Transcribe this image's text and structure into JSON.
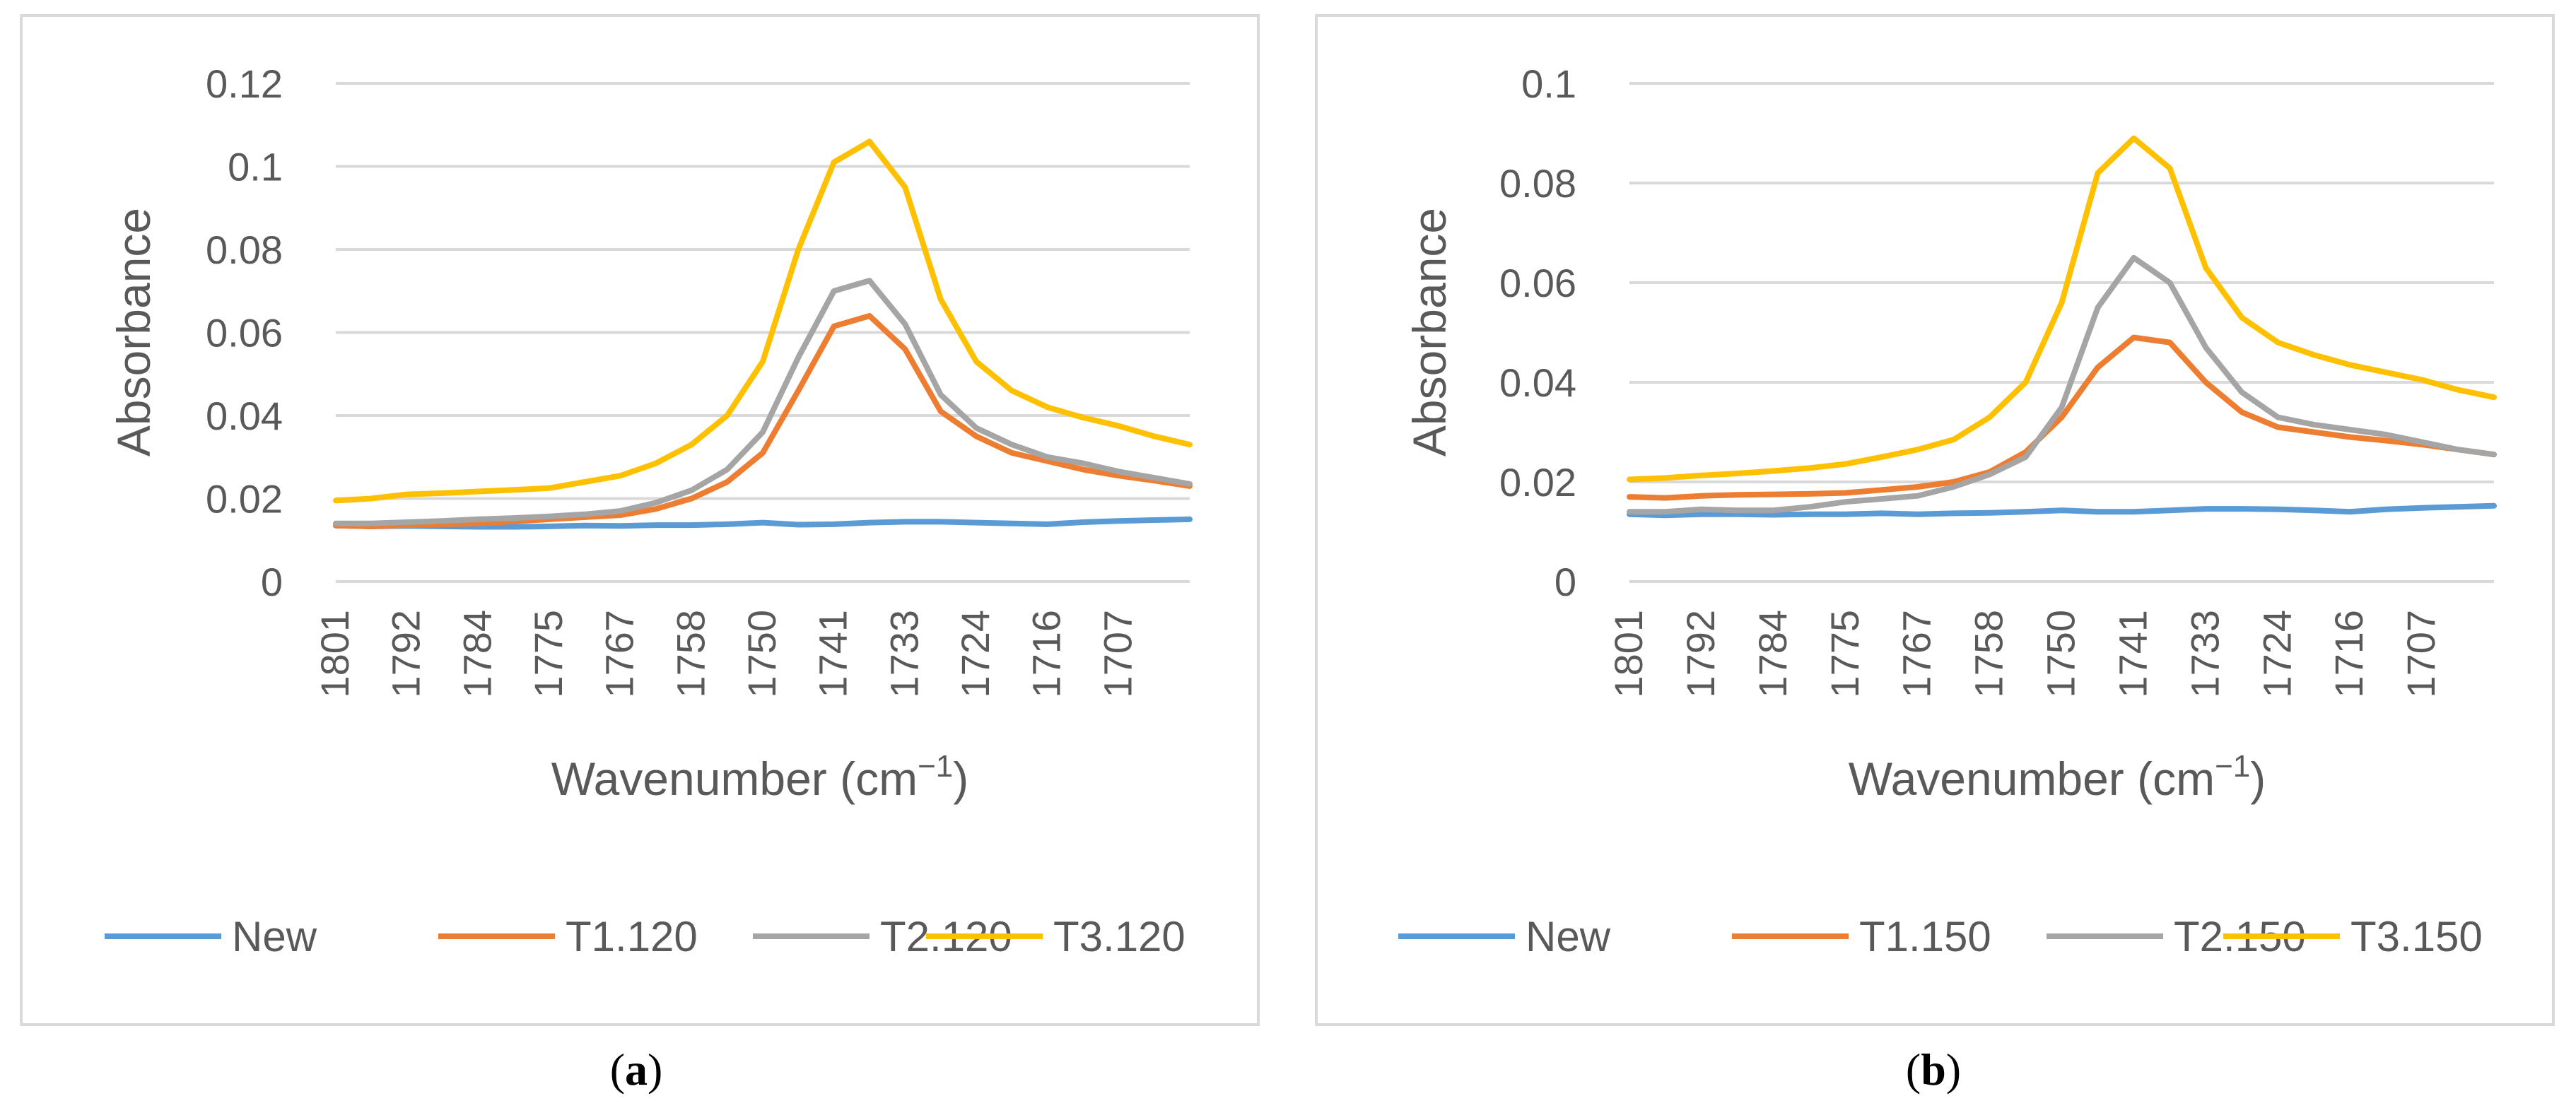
{
  "colors": {
    "new": "#5B9BD5",
    "t1": "#ED7D31",
    "t2": "#A5A5A5",
    "t3": "#FFC000",
    "grid": "#D9D9D9",
    "frame": "#D9D9D9",
    "text": "#595959"
  },
  "chart_data": [
    {
      "type": "line",
      "panel": "a",
      "caption_open": "(",
      "caption_letter": "a",
      "caption_close": ")",
      "xlabel": "Wavenumber (cm",
      "xlabel_sup": "−1",
      "xlabel_close": ")",
      "ylabel": "Absorbance",
      "ylim": [
        0,
        0.12
      ],
      "yticks": [
        "0",
        "0.02",
        "0.04",
        "0.06",
        "0.08",
        "0.1",
        "0.12"
      ],
      "x_categories": [
        "1801",
        "1796.5",
        "1792",
        "1788",
        "1784",
        "1779.5",
        "1775",
        "1771",
        "1767",
        "1762.5",
        "1758",
        "1754",
        "1750",
        "1745.5",
        "1741",
        "1737",
        "1733",
        "1728.5",
        "1724",
        "1720",
        "1716",
        "1711.5",
        "1707",
        "1703",
        "1699"
      ],
      "x_tick_labels": [
        "1801",
        "1792",
        "1784",
        "1775",
        "1767",
        "1758",
        "1750",
        "1741",
        "1733",
        "1724",
        "1716",
        "1707"
      ],
      "legend_position": "bottom",
      "series": [
        {
          "name": "New",
          "color_key": "new",
          "values": [
            0.0135,
            0.0133,
            0.0134,
            0.0133,
            0.0132,
            0.0132,
            0.0133,
            0.0135,
            0.0134,
            0.0136,
            0.0136,
            0.0138,
            0.0142,
            0.0137,
            0.0138,
            0.0142,
            0.0144,
            0.0144,
            0.0142,
            0.014,
            0.0138,
            0.0143,
            0.0146,
            0.0148,
            0.015
          ]
        },
        {
          "name": "T1.120",
          "color_key": "t1",
          "values": [
            0.0135,
            0.0133,
            0.0136,
            0.0138,
            0.014,
            0.0145,
            0.015,
            0.0155,
            0.016,
            0.0175,
            0.02,
            0.024,
            0.031,
            0.046,
            0.0615,
            0.064,
            0.056,
            0.041,
            0.035,
            0.031,
            0.029,
            0.027,
            0.0255,
            0.0243,
            0.023
          ]
        },
        {
          "name": "T2.120",
          "color_key": "t2",
          "values": [
            0.014,
            0.014,
            0.0143,
            0.0146,
            0.015,
            0.0153,
            0.0157,
            0.0162,
            0.017,
            0.019,
            0.022,
            0.027,
            0.036,
            0.054,
            0.07,
            0.0725,
            0.062,
            0.045,
            0.037,
            0.033,
            0.03,
            0.0285,
            0.0265,
            0.025,
            0.0235
          ]
        },
        {
          "name": "T3.120",
          "color_key": "t3",
          "values": [
            0.0195,
            0.02,
            0.021,
            0.0213,
            0.0217,
            0.0221,
            0.0225,
            0.024,
            0.0255,
            0.0285,
            0.033,
            0.04,
            0.053,
            0.08,
            0.101,
            0.106,
            0.095,
            0.068,
            0.053,
            0.046,
            0.042,
            0.0395,
            0.0375,
            0.035,
            0.033
          ]
        }
      ]
    },
    {
      "type": "line",
      "panel": "b",
      "caption_open": "(",
      "caption_letter": "b",
      "caption_close": ")",
      "xlabel": "Wavenumber (cm",
      "xlabel_sup": "−1",
      "xlabel_close": ")",
      "ylabel": "Absorbance",
      "ylim": [
        0,
        0.1
      ],
      "yticks": [
        "0",
        "0.02",
        "0.04",
        "0.06",
        "0.08",
        "0.1"
      ],
      "x_categories": [
        "1801",
        "1796.5",
        "1792",
        "1788",
        "1784",
        "1779.5",
        "1775",
        "1771",
        "1767",
        "1762.5",
        "1758",
        "1754",
        "1750",
        "1745.5",
        "1741",
        "1737",
        "1733",
        "1728.5",
        "1724",
        "1720",
        "1716",
        "1711.5",
        "1707",
        "1703",
        "1699"
      ],
      "x_tick_labels": [
        "1801",
        "1792",
        "1784",
        "1775",
        "1767",
        "1758",
        "1750",
        "1741",
        "1733",
        "1724",
        "1716",
        "1707"
      ],
      "legend_position": "bottom",
      "series": [
        {
          "name": "New",
          "color_key": "new",
          "values": [
            0.0135,
            0.0133,
            0.0135,
            0.0135,
            0.0134,
            0.0135,
            0.0135,
            0.0137,
            0.0135,
            0.0137,
            0.0138,
            0.014,
            0.0143,
            0.014,
            0.014,
            0.0143,
            0.0146,
            0.0146,
            0.0145,
            0.0143,
            0.014,
            0.0145,
            0.0148,
            0.015,
            0.0152
          ]
        },
        {
          "name": "T1.150",
          "color_key": "t1",
          "values": [
            0.017,
            0.0168,
            0.0172,
            0.0174,
            0.0175,
            0.0176,
            0.0178,
            0.0184,
            0.019,
            0.02,
            0.022,
            0.026,
            0.033,
            0.043,
            0.049,
            0.048,
            0.04,
            0.034,
            0.031,
            0.03,
            0.029,
            0.0283,
            0.0275,
            0.0265,
            0.0255
          ]
        },
        {
          "name": "T2.150",
          "color_key": "t2",
          "values": [
            0.014,
            0.014,
            0.0145,
            0.0143,
            0.0143,
            0.015,
            0.016,
            0.0166,
            0.0172,
            0.019,
            0.0215,
            0.025,
            0.035,
            0.055,
            0.065,
            0.06,
            0.047,
            0.038,
            0.033,
            0.0315,
            0.0305,
            0.0295,
            0.028,
            0.0265,
            0.0255
          ]
        },
        {
          "name": "T3.150",
          "color_key": "t3",
          "values": [
            0.0205,
            0.0208,
            0.0213,
            0.0217,
            0.0222,
            0.0228,
            0.0236,
            0.025,
            0.0265,
            0.0285,
            0.033,
            0.04,
            0.056,
            0.082,
            0.089,
            0.083,
            0.063,
            0.053,
            0.048,
            0.0455,
            0.0435,
            0.042,
            0.0405,
            0.0385,
            0.037
          ]
        }
      ]
    }
  ]
}
